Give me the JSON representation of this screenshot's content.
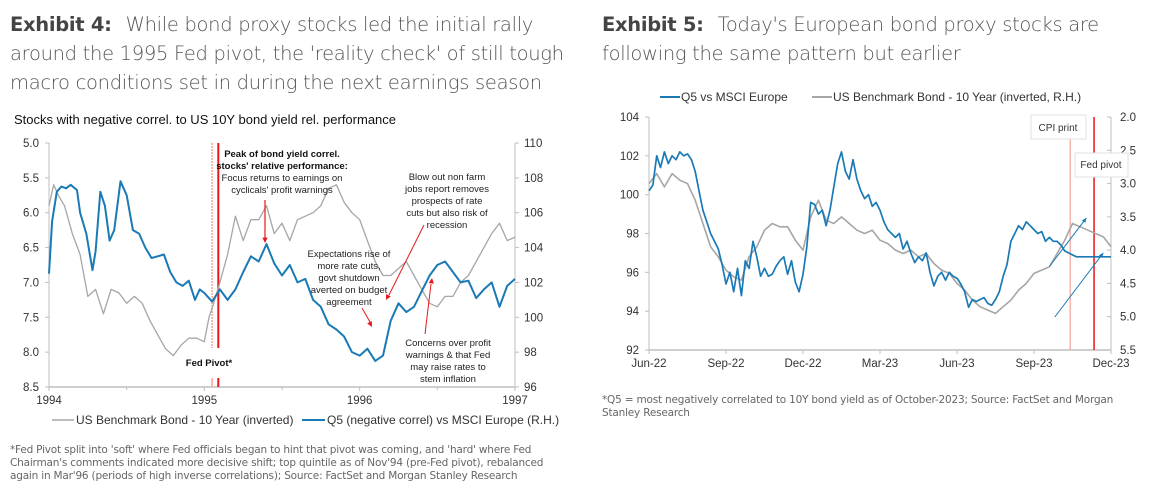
{
  "exhibit4": {
    "label": "Exhibit 4:",
    "title": "While bond proxy stocks led the initial rally around the 1995 Fed pivot, the 'reality check' of still tough macro conditions set in during the next earnings season",
    "footnote": "*Fed Pivot split into 'soft' where Fed officials began to hint that pivot was coming, and 'hard' where Fed Chairman's comments indicated more decisive shift; top quintile as of Nov'94 (pre-Fed pivot), rebalanced again in Mar'96 (periods of high inverse correlations); Source: FactSet and Morgan Stanley Research"
  },
  "exhibit5": {
    "label": "Exhibit 5:",
    "title": "Today's European bond proxy stocks are following the same pattern but earlier",
    "footnote": "*Q5 = most negatively correlated to 10Y bond yield as of October-2023; Source: FactSet and Morgan Stanley Research"
  },
  "colors": {
    "blue": "#1a7ab5",
    "grey": "#a6a6a6",
    "red": "#e8151b",
    "pink": "#f4a39a"
  },
  "chart_data": [
    {
      "type": "line",
      "title": "Stocks with negative correl. to US 10Y bond yield rel. performance",
      "x_ticks": [
        "1994",
        "1995",
        "1996",
        "1997"
      ],
      "xlim": [
        1994,
        1997
      ],
      "y_left": {
        "ticks": [
          "5.0",
          "5.5",
          "6.0",
          "6.5",
          "7.0",
          "7.5",
          "8.0",
          "8.5"
        ],
        "range": [
          8.5,
          5.0
        ],
        "inverted": true
      },
      "y_right": {
        "ticks": [
          "96",
          "98",
          "100",
          "102",
          "104",
          "106",
          "108",
          "110"
        ],
        "range": [
          96,
          110
        ]
      },
      "legend_position": "bottom",
      "series": [
        {
          "name": "US Benchmark Bond - 10 Year (inverted)",
          "axis": "left",
          "color": "grey",
          "x": [
            1994.0,
            1994.03,
            1994.06,
            1994.1,
            1994.15,
            1994.2,
            1994.25,
            1994.3,
            1994.35,
            1994.4,
            1994.45,
            1994.5,
            1994.55,
            1994.6,
            1994.65,
            1994.7,
            1994.75,
            1994.8,
            1994.85,
            1994.9,
            1994.95,
            1995.0,
            1995.03,
            1995.06,
            1995.1,
            1995.15,
            1995.2,
            1995.25,
            1995.3,
            1995.35,
            1995.4,
            1995.45,
            1995.5,
            1995.55,
            1995.6,
            1995.65,
            1995.7,
            1995.75,
            1995.8,
            1995.85,
            1995.9,
            1995.95,
            1996.0,
            1996.05,
            1996.1,
            1996.15,
            1996.2,
            1996.25,
            1996.3,
            1996.35,
            1996.4,
            1996.45,
            1996.5,
            1996.55,
            1996.6,
            1996.65,
            1996.7,
            1996.75,
            1996.8,
            1996.85,
            1996.9,
            1996.95,
            1997.0
          ],
          "values": [
            5.9,
            5.6,
            5.75,
            5.9,
            6.3,
            6.6,
            7.2,
            7.1,
            7.45,
            7.1,
            7.15,
            7.3,
            7.2,
            7.3,
            7.55,
            7.75,
            7.95,
            8.05,
            7.9,
            7.8,
            7.8,
            7.85,
            7.5,
            7.3,
            7.0,
            6.6,
            6.05,
            6.4,
            6.1,
            6.1,
            5.9,
            6.3,
            6.15,
            6.4,
            6.1,
            6.05,
            6.0,
            5.9,
            5.65,
            5.6,
            5.85,
            6.0,
            6.1,
            6.4,
            6.7,
            6.9,
            6.9,
            6.8,
            6.7,
            6.9,
            7.1,
            7.3,
            7.35,
            7.2,
            7.2,
            7.0,
            6.9,
            6.7,
            6.5,
            6.3,
            6.15,
            6.4,
            6.35
          ]
        },
        {
          "name": "Q5 (negative correl) vs MSCI Europe (R.H.)",
          "axis": "right",
          "color": "blue",
          "x": [
            1994.0,
            1994.02,
            1994.05,
            1994.08,
            1994.11,
            1994.14,
            1994.18,
            1994.2,
            1994.24,
            1994.28,
            1994.3,
            1994.33,
            1994.36,
            1994.39,
            1994.42,
            1994.46,
            1994.5,
            1994.54,
            1994.58,
            1994.62,
            1994.66,
            1994.7,
            1994.74,
            1994.78,
            1994.82,
            1994.86,
            1994.9,
            1994.94,
            1994.97,
            1995.0,
            1995.05,
            1995.1,
            1995.15,
            1995.2,
            1995.25,
            1995.3,
            1995.35,
            1995.4,
            1995.45,
            1995.5,
            1995.55,
            1995.6,
            1995.65,
            1995.7,
            1995.75,
            1995.8,
            1995.85,
            1995.9,
            1995.95,
            1996.0,
            1996.05,
            1996.1,
            1996.15,
            1996.2,
            1996.25,
            1996.3,
            1996.35,
            1996.4,
            1996.45,
            1996.5,
            1996.55,
            1996.6,
            1996.65,
            1996.7,
            1996.75,
            1996.8,
            1996.85,
            1996.9,
            1996.95,
            1997.0
          ],
          "values": [
            102.5,
            105.5,
            107.2,
            107.5,
            107.4,
            107.6,
            107.3,
            106.0,
            104.8,
            102.7,
            103.8,
            107.2,
            106.4,
            104.4,
            105.0,
            107.8,
            107.0,
            105.0,
            104.8,
            104.0,
            103.4,
            103.5,
            103.6,
            102.6,
            102.0,
            101.8,
            102.1,
            101.0,
            101.6,
            101.4,
            100.9,
            101.6,
            101.0,
            101.6,
            102.6,
            103.5,
            103.2,
            104.2,
            103.1,
            102.4,
            103.0,
            102.0,
            102.2,
            101.0,
            100.6,
            99.6,
            99.3,
            98.9,
            98.0,
            97.8,
            98.2,
            97.5,
            97.8,
            99.8,
            100.8,
            100.3,
            100.6,
            101.5,
            102.4,
            103.0,
            103.2,
            102.6,
            102.0,
            102.1,
            101.1,
            101.6,
            102.0,
            100.6,
            101.8,
            102.2
          ]
        }
      ],
      "vertical_lines": [
        {
          "x": 1995.05,
          "style": "soft",
          "color": "pink"
        },
        {
          "x": 1995.09,
          "style": "hard",
          "color": "red"
        }
      ],
      "annotations": [
        {
          "id": "fed-pivot",
          "text": "Fed Pivot*"
        },
        {
          "id": "peak",
          "bold_lines": [
            "Peak of bond yield correl.",
            "stocks' relative performance:"
          ],
          "lines": [
            "Focus returns to earnings on",
            "cyclicals' profit warnings"
          ]
        },
        {
          "id": "blowout",
          "lines": [
            "Blow out non farm",
            "jobs report removes",
            "prospects of rate",
            "cuts but also risk of",
            "recession"
          ]
        },
        {
          "id": "expectations",
          "lines": [
            "Expectations rise of",
            "more rate cuts,",
            "govt shutdown",
            "averted on budget",
            "agreement"
          ]
        },
        {
          "id": "concerns",
          "lines": [
            "Concerns over profit",
            "warnings & that Fed",
            "may raise rates to",
            "stem inflation"
          ]
        }
      ]
    },
    {
      "type": "line",
      "title": "",
      "x_ticks": [
        "Jun-22",
        "Sep-22",
        "Dec-22",
        "Mar-23",
        "Jun-23",
        "Sep-23",
        "Dec-23"
      ],
      "xlim": [
        0,
        6
      ],
      "y_left": {
        "ticks": [
          "92",
          "94",
          "96",
          "98",
          "100",
          "102",
          "104"
        ],
        "range": [
          92,
          104
        ]
      },
      "y_right": {
        "ticks": [
          "2.0",
          "2.5",
          "3.0",
          "3.5",
          "4.0",
          "4.5",
          "5.0",
          "5.5"
        ],
        "range": [
          5.5,
          2.0
        ],
        "inverted": true
      },
      "legend_position": "top",
      "series": [
        {
          "name": "Q5 vs MSCI Europe",
          "axis": "left",
          "color": "blue",
          "x": [
            0,
            0.05,
            0.1,
            0.15,
            0.2,
            0.25,
            0.3,
            0.35,
            0.4,
            0.45,
            0.5,
            0.55,
            0.6,
            0.65,
            0.7,
            0.75,
            0.8,
            0.85,
            0.9,
            0.95,
            1.0,
            1.05,
            1.1,
            1.15,
            1.2,
            1.25,
            1.3,
            1.35,
            1.4,
            1.45,
            1.5,
            1.55,
            1.6,
            1.65,
            1.7,
            1.75,
            1.8,
            1.85,
            1.9,
            1.95,
            2.0,
            2.05,
            2.1,
            2.15,
            2.2,
            2.25,
            2.3,
            2.35,
            2.4,
            2.45,
            2.5,
            2.55,
            2.6,
            2.65,
            2.7,
            2.75,
            2.8,
            2.85,
            2.9,
            2.95,
            3.0,
            3.05,
            3.1,
            3.15,
            3.2,
            3.25,
            3.3,
            3.35,
            3.4,
            3.45,
            3.5,
            3.55,
            3.6,
            3.65,
            3.7,
            3.75,
            3.8,
            3.85,
            3.9,
            3.95,
            4.0,
            4.05,
            4.1,
            4.15,
            4.2,
            4.25,
            4.3,
            4.35,
            4.4,
            4.45,
            4.5,
            4.55,
            4.6,
            4.65,
            4.7,
            4.75,
            4.8,
            4.85,
            4.9,
            4.95,
            5.0,
            5.05,
            5.1,
            5.15,
            5.2,
            5.25,
            5.3,
            5.35,
            5.4,
            5.45,
            5.5,
            5.55,
            5.6,
            5.65,
            5.7,
            5.75,
            5.8,
            5.85,
            5.9,
            5.95,
            6.0
          ],
          "values": [
            100.2,
            100.5,
            102.0,
            101.4,
            102.2,
            101.6,
            102.0,
            101.8,
            102.2,
            102.0,
            102.1,
            101.8,
            101.2,
            100.2,
            99.2,
            98.6,
            98.0,
            97.6,
            97.2,
            96.4,
            95.4,
            96.0,
            95.0,
            96.2,
            94.8,
            96.6,
            96.2,
            97.6,
            96.8,
            95.8,
            96.2,
            95.8,
            95.9,
            96.3,
            96.6,
            96.8,
            95.9,
            96.6,
            95.5,
            95.0,
            95.9,
            97.3,
            99.6,
            99.5,
            99.0,
            99.2,
            98.4,
            99.2,
            100.4,
            101.6,
            102.2,
            101.2,
            100.8,
            101.8,
            100.8,
            100.2,
            99.8,
            100.0,
            99.4,
            99.6,
            99.2,
            98.6,
            98.2,
            98.0,
            97.8,
            98.0,
            97.2,
            97.6,
            97.0,
            96.5,
            96.8,
            96.6,
            97.0,
            96.0,
            95.3,
            95.8,
            96.0,
            95.6,
            96.0,
            95.8,
            95.7,
            95.4,
            95.0,
            94.2,
            94.6,
            94.5,
            94.6,
            94.7,
            94.4,
            94.3,
            94.6,
            95.0,
            95.8,
            96.4,
            97.6,
            98.0,
            98.4,
            98.2,
            98.6,
            98.4,
            98.2,
            98.0,
            98.1,
            97.6,
            97.8,
            97.6,
            97.6,
            97.4,
            97.1,
            97.0,
            96.9,
            96.8,
            96.8,
            96.8,
            96.8,
            96.8,
            96.8,
            96.8,
            96.8,
            96.8,
            96.8
          ],
          "note": "Series ends near 96.9 around Dec-23"
        },
        {
          "name": "US Benchmark Bond - 10 Year (inverted, R.H.)",
          "axis": "right",
          "color": "grey",
          "x": [
            0,
            0.1,
            0.2,
            0.3,
            0.4,
            0.5,
            0.6,
            0.7,
            0.8,
            0.9,
            1.0,
            1.1,
            1.2,
            1.3,
            1.4,
            1.5,
            1.6,
            1.7,
            1.8,
            1.9,
            2.0,
            2.1,
            2.2,
            2.3,
            2.4,
            2.5,
            2.6,
            2.7,
            2.8,
            2.9,
            3.0,
            3.1,
            3.2,
            3.3,
            3.4,
            3.5,
            3.6,
            3.7,
            3.8,
            3.9,
            4.0,
            4.1,
            4.2,
            4.3,
            4.4,
            4.5,
            4.6,
            4.7,
            4.8,
            4.9,
            5.0,
            5.1,
            5.2,
            5.3,
            5.4,
            5.5,
            5.6,
            5.7,
            5.8,
            5.9,
            6.0
          ],
          "values": [
            3.0,
            2.85,
            3.05,
            2.85,
            2.95,
            3.0,
            3.25,
            3.6,
            3.95,
            4.1,
            4.3,
            4.4,
            4.45,
            4.1,
            3.95,
            3.7,
            3.6,
            3.65,
            3.65,
            3.85,
            4.0,
            3.5,
            3.25,
            3.55,
            3.6,
            3.5,
            3.6,
            3.7,
            3.75,
            3.7,
            3.85,
            3.9,
            4.0,
            4.05,
            4.0,
            4.1,
            4.05,
            4.2,
            4.3,
            4.35,
            4.5,
            4.6,
            4.75,
            4.85,
            4.9,
            4.95,
            4.85,
            4.75,
            4.6,
            4.5,
            4.35,
            4.3,
            4.25,
            4.05,
            3.85,
            3.6,
            3.65,
            3.7,
            3.75,
            3.8,
            3.95
          ]
        }
      ],
      "vertical_lines": [
        {
          "x": 5.47,
          "label": "CPI print",
          "color": "pink"
        },
        {
          "x": 5.78,
          "label": "Fed pivot",
          "color": "red"
        }
      ],
      "arrows": [
        {
          "from": [
            5.2,
            96.3
          ],
          "to": [
            5.68,
            98.8
          ],
          "color": "blue"
        },
        {
          "from": [
            5.27,
            93.7
          ],
          "to": [
            5.9,
            97.0
          ],
          "color": "blue"
        }
      ]
    }
  ]
}
